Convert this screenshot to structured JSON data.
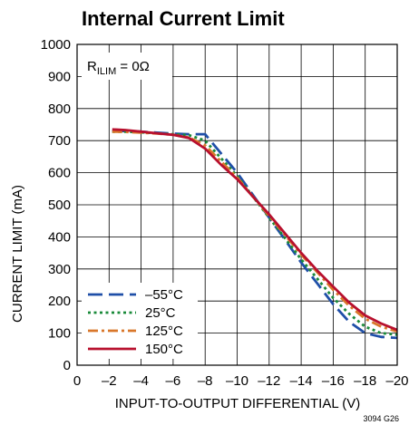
{
  "chart_data": {
    "type": "line",
    "title": "Internal Current Limit",
    "xlabel": "INPUT-TO-OUTPUT DIFFERENTIAL (V)",
    "ylabel": "CURRENT LIMIT (mA)",
    "xlim": [
      0,
      -20
    ],
    "ylim": [
      0,
      1000
    ],
    "x_ticks": [
      0,
      -2,
      -4,
      -6,
      -8,
      -10,
      -12,
      -14,
      -16,
      -18,
      -20
    ],
    "x_tick_labels": [
      "0",
      "–2",
      "–4",
      "–6",
      "–8",
      "–10",
      "–12",
      "–14",
      "–16",
      "–18",
      "–20"
    ],
    "y_ticks": [
      0,
      100,
      200,
      300,
      400,
      500,
      600,
      700,
      800,
      900,
      1000
    ],
    "y_tick_labels": [
      "0",
      "100",
      "200",
      "300",
      "400",
      "500",
      "600",
      "700",
      "800",
      "900",
      "1000"
    ],
    "grid": true,
    "legend_position": "bottom-left",
    "annotation": {
      "main": "R",
      "sub": "ILIM",
      "tail": " = 0Ω"
    },
    "figure_id": "3094 G26",
    "series": [
      {
        "name": "–55°C",
        "color": "#1f4fa8",
        "dash": "long-dash",
        "x": [
          -2.2,
          -3,
          -4,
          -5,
          -6,
          -7,
          -8,
          -9,
          -10,
          -11,
          -12,
          -13,
          -14,
          -15,
          -16,
          -17,
          -18,
          -19,
          -20
        ],
        "y": [
          730,
          730,
          728,
          725,
          722,
          720,
          720,
          660,
          600,
          530,
          460,
          390,
          320,
          255,
          190,
          135,
          100,
          88,
          85
        ]
      },
      {
        "name": "25°C",
        "color": "#1a8a3a",
        "dash": "dotted",
        "x": [
          -2.2,
          -3,
          -4,
          -5,
          -6,
          -7,
          -8,
          -9,
          -10,
          -11,
          -12,
          -13,
          -14,
          -15,
          -16,
          -17,
          -18,
          -19,
          -20
        ],
        "y": [
          728,
          728,
          726,
          723,
          720,
          717,
          700,
          645,
          590,
          525,
          460,
          395,
          330,
          270,
          210,
          160,
          120,
          100,
          95
        ]
      },
      {
        "name": "125°C",
        "color": "#d9772b",
        "dash": "dash-dot",
        "x": [
          -2.2,
          -3,
          -4,
          -5,
          -6,
          -7,
          -8,
          -9,
          -10,
          -11,
          -12,
          -13,
          -14,
          -15,
          -16,
          -17,
          -18,
          -19,
          -20
        ],
        "y": [
          728,
          727,
          725,
          722,
          718,
          710,
          685,
          635,
          585,
          525,
          465,
          405,
          345,
          290,
          235,
          185,
          145,
          120,
          105
        ]
      },
      {
        "name": "150°C",
        "color": "#b8102e",
        "dash": "solid",
        "x": [
          -2.2,
          -3,
          -4,
          -5,
          -6,
          -7,
          -8,
          -9,
          -10,
          -11,
          -12,
          -13,
          -14,
          -15,
          -16,
          -17,
          -18,
          -19,
          -20
        ],
        "y": [
          735,
          733,
          728,
          723,
          718,
          708,
          675,
          625,
          580,
          525,
          470,
          410,
          350,
          295,
          245,
          195,
          155,
          130,
          110
        ]
      }
    ]
  }
}
